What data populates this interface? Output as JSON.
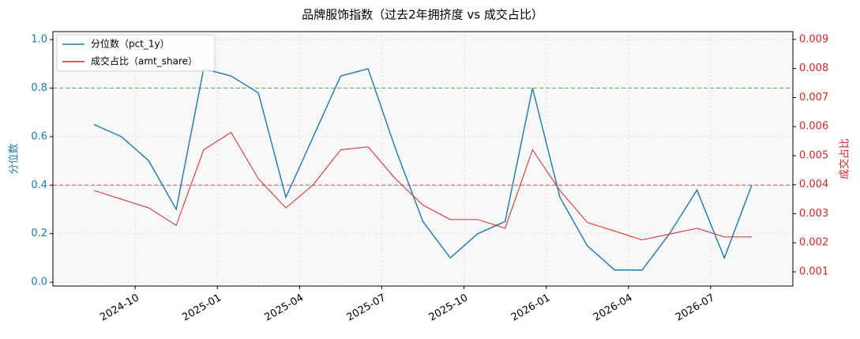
{
  "chart_data": {
    "type": "line",
    "title": "品牌服饰指数（过去2年拥挤度 vs 成交占比）",
    "ylabel": "分位数",
    "y2label": "成交占比",
    "x": [
      "2024-08",
      "2024-09",
      "2024-10",
      "2024-11",
      "2024-12",
      "2025-01",
      "2025-02",
      "2025-03",
      "2025-04",
      "2025-05",
      "2025-06",
      "2025-07",
      "2025-08",
      "2025-09",
      "2025-10",
      "2025-11",
      "2025-12",
      "2026-01",
      "2026-02",
      "2026-03",
      "2026-04",
      "2026-05",
      "2026-06",
      "2026-07",
      "2026-08"
    ],
    "series": [
      {
        "name": "分位数（pct_1y）",
        "color": "#1f77b4",
        "axis": "y",
        "values": [
          0.65,
          0.6,
          0.5,
          0.3,
          0.88,
          0.85,
          0.78,
          0.35,
          0.6,
          0.85,
          0.88,
          0.55,
          0.25,
          0.1,
          0.2,
          0.25,
          0.8,
          0.35,
          0.15,
          0.05,
          0.05,
          0.2,
          0.38,
          0.1,
          0.4
        ]
      },
      {
        "name": "成交占比（amt_share）",
        "color": "#d62728",
        "axis": "y2",
        "values": [
          0.0038,
          0.0035,
          0.0032,
          0.0026,
          0.0052,
          0.0058,
          0.0042,
          0.0032,
          0.004,
          0.0052,
          0.0053,
          0.0042,
          0.0033,
          0.0028,
          0.0028,
          0.0025,
          0.0052,
          0.0038,
          0.0027,
          0.0024,
          0.0021,
          0.0023,
          0.0025,
          0.0022,
          0.0022
        ]
      }
    ],
    "xlim": [
      "2024-07",
      "2026-10"
    ],
    "xticks": [
      "2024-10",
      "2025-01",
      "2025-04",
      "2025-07",
      "2025-10",
      "2026-01",
      "2026-04",
      "2026-07"
    ],
    "ylim": [
      -0.016,
      1.033
    ],
    "yticks": [
      {
        "value": 0,
        "label": "0.0"
      },
      0.2,
      0.4,
      0.6,
      0.8,
      {
        "value": 1,
        "label": "1.0"
      }
    ],
    "y2lim": [
      0.00051,
      0.00927
    ],
    "y2ticks": [
      0.001,
      0.002,
      0.003,
      0.004,
      0.005,
      0.006,
      0.007,
      0.008,
      0.009
    ],
    "hlines": [
      {
        "value": 0.8,
        "color": "#2ca02c"
      },
      {
        "value": 0.4,
        "color": "#d62728"
      }
    ],
    "grid": true,
    "legend": "upper left"
  }
}
